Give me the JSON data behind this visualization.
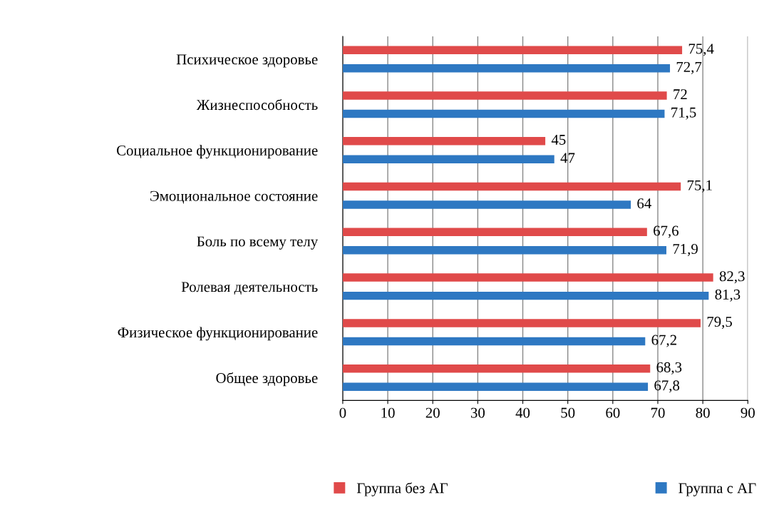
{
  "chart_data": {
    "type": "bar",
    "orientation": "horizontal",
    "categories": [
      "Психическое здоровье",
      "Жизнеспособность",
      "Социальное функционирование",
      "Эмоциональное состояние",
      "Боль по всему телу",
      "Ролевая деятельность",
      "Физическое функционирование",
      "Общее здоровье"
    ],
    "series": [
      {
        "name": "Группа без АГ",
        "color": "#e04a4a",
        "values": [
          75.4,
          72,
          45,
          75.1,
          67.6,
          82.3,
          79.5,
          68.3
        ],
        "value_labels": [
          "75,4",
          "72",
          "45",
          "75,1",
          "67,6",
          "82,3",
          "79,5",
          "68,3"
        ]
      },
      {
        "name": "Группа с АГ",
        "color": "#2e78c2",
        "values": [
          72.7,
          71.5,
          47,
          64,
          71.9,
          81.3,
          67.2,
          67.8
        ],
        "value_labels": [
          "72,7",
          "71,5",
          "47",
          "64",
          "71,9",
          "81,3",
          "67,2",
          "67,8"
        ]
      }
    ],
    "xlim": [
      0,
      90
    ],
    "xticks": [
      0,
      10,
      20,
      30,
      40,
      50,
      60,
      70,
      80,
      90
    ],
    "grid": "x",
    "legend": "bottom"
  }
}
